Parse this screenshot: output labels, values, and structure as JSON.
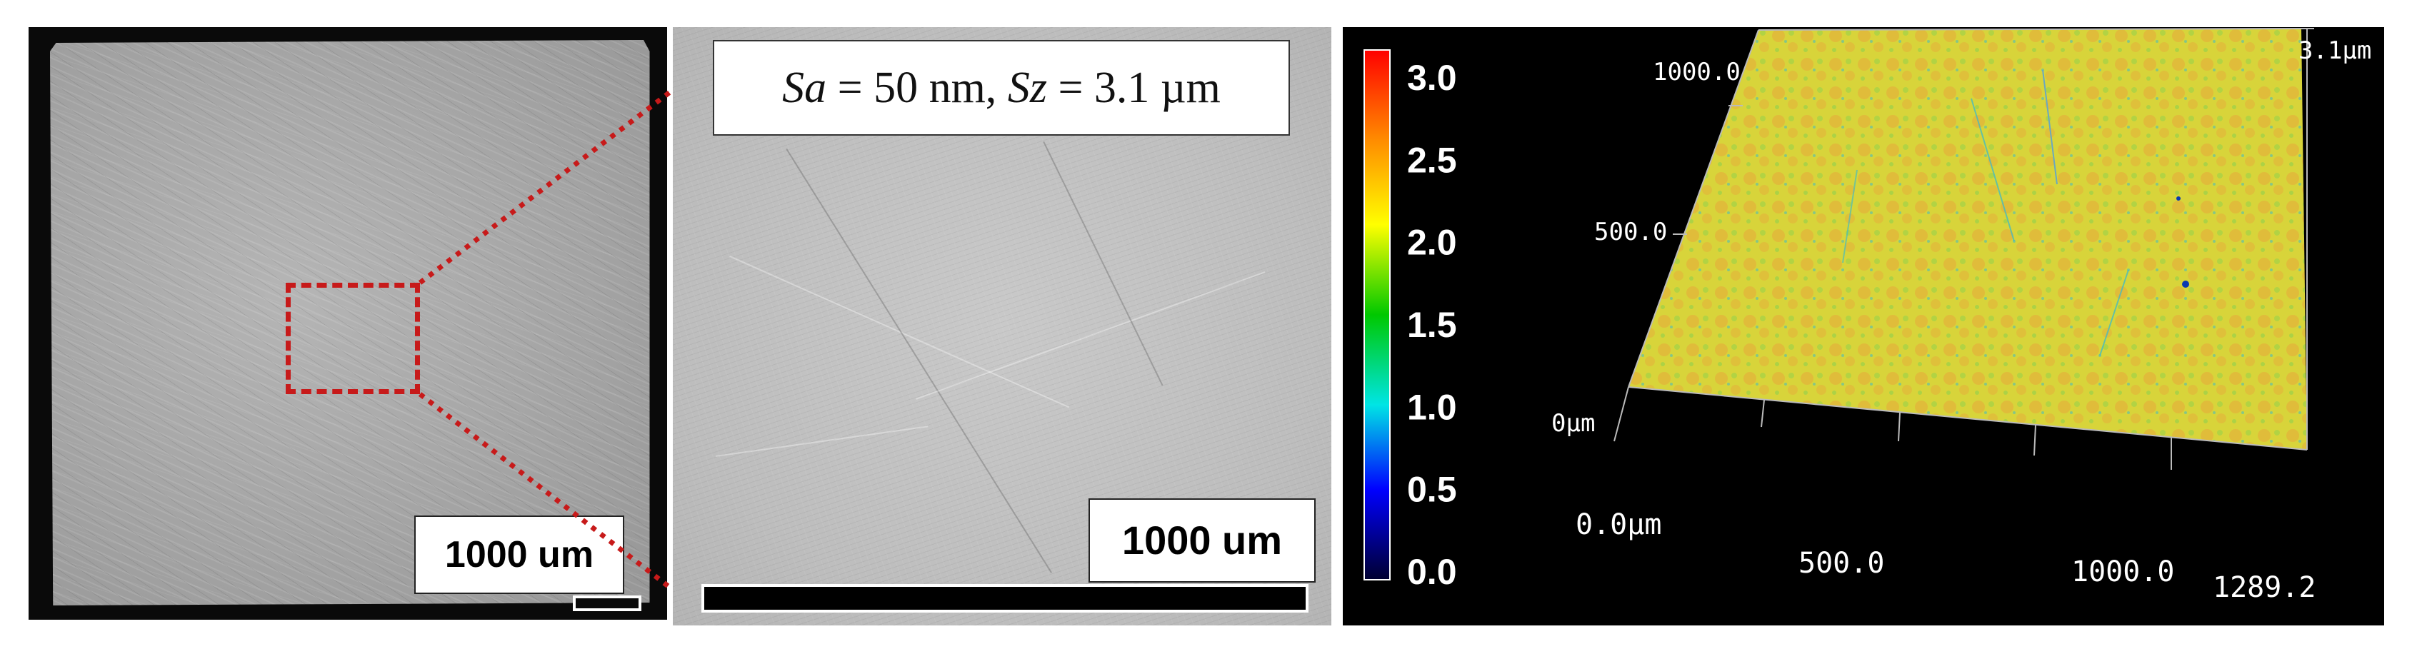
{
  "panel_a": {
    "scale_label": "1000 um"
  },
  "panel_b": {
    "roughness": {
      "sa_symbol": "Sa",
      "sa_value": " = 50 nm, ",
      "sz_symbol": "Sz",
      "sz_value": " = 3.1 µm"
    },
    "scale_label": "1000 um"
  },
  "panel_c": {
    "colorbar": {
      "ticks": [
        "3.0",
        "2.5",
        "2.0",
        "1.5",
        "1.0",
        "0.5",
        "0.0"
      ],
      "colors": [
        "#ff0000",
        "#ff8c00",
        "#ffff00",
        "#00c800",
        "#00e5e5",
        "#0000ff",
        "#000030"
      ]
    },
    "axes": {
      "z_top_label": "3.1µm",
      "z_bottom_label": "0µm",
      "y_label_1000": "1000.0",
      "y_label_500": "500.0",
      "x_origin_label": "0.0µm",
      "x_label_500": "500.0",
      "x_label_1000": "1000.0",
      "x_end_label": "1289.2"
    },
    "surface_colors": [
      "#d8d43a",
      "#e6a83a",
      "#9ad24a",
      "#35b8d0"
    ]
  }
}
